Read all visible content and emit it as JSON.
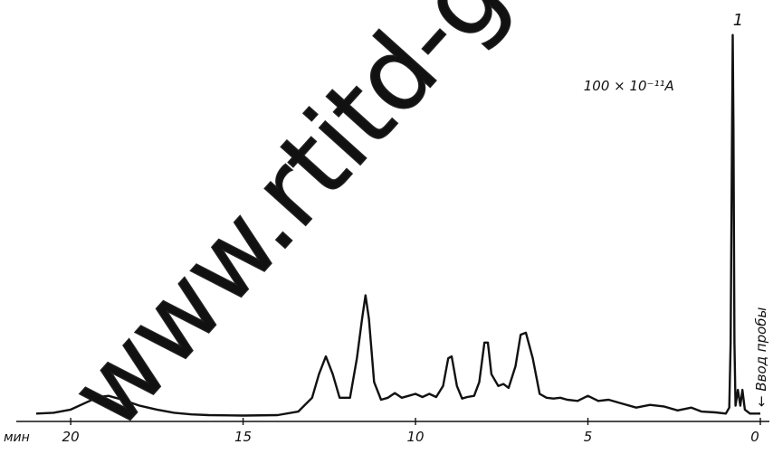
{
  "chart_data": {
    "type": "line",
    "title": "",
    "xlabel": "мин",
    "ylabel": "",
    "x_axis_reversed": true,
    "xlim": [
      0,
      21
    ],
    "ylim": [
      0,
      100
    ],
    "grid": false,
    "x_ticks": [
      {
        "value": 20,
        "label": "20"
      },
      {
        "value": 15,
        "label": "15"
      },
      {
        "value": 10,
        "label": "10"
      },
      {
        "value": 5,
        "label": "5"
      },
      {
        "value": 0,
        "label": "0"
      }
    ],
    "series": [
      {
        "points": [
          [
            21.0,
            2.0
          ],
          [
            20.5,
            2.2
          ],
          [
            20.0,
            3.0
          ],
          [
            19.5,
            5.0
          ],
          [
            19.2,
            6.2
          ],
          [
            18.9,
            6.5
          ],
          [
            18.5,
            5.5
          ],
          [
            18.0,
            4.0
          ],
          [
            17.5,
            3.0
          ],
          [
            17.0,
            2.2
          ],
          [
            16.5,
            1.8
          ],
          [
            16.0,
            1.6
          ],
          [
            15.0,
            1.5
          ],
          [
            14.0,
            1.6
          ],
          [
            13.4,
            2.5
          ],
          [
            13.0,
            6.0
          ],
          [
            12.8,
            12.0
          ],
          [
            12.6,
            16.5
          ],
          [
            12.4,
            12.0
          ],
          [
            12.2,
            6.0
          ],
          [
            11.9,
            6.0
          ],
          [
            11.7,
            16.0
          ],
          [
            11.55,
            26.0
          ],
          [
            11.45,
            32.0
          ],
          [
            11.35,
            26.0
          ],
          [
            11.2,
            10.0
          ],
          [
            11.0,
            5.5
          ],
          [
            10.8,
            6.0
          ],
          [
            10.6,
            7.2
          ],
          [
            10.4,
            6.0
          ],
          [
            10.2,
            6.5
          ],
          [
            10.0,
            7.0
          ],
          [
            9.8,
            6.2
          ],
          [
            9.6,
            7.0
          ],
          [
            9.4,
            6.2
          ],
          [
            9.2,
            9.0
          ],
          [
            9.05,
            16.0
          ],
          [
            8.95,
            16.5
          ],
          [
            8.8,
            9.0
          ],
          [
            8.65,
            5.8
          ],
          [
            8.5,
            6.2
          ],
          [
            8.3,
            6.5
          ],
          [
            8.15,
            10.0
          ],
          [
            8.0,
            20.0
          ],
          [
            7.9,
            20.0
          ],
          [
            7.8,
            12.0
          ],
          [
            7.6,
            9.0
          ],
          [
            7.45,
            9.5
          ],
          [
            7.3,
            8.5
          ],
          [
            7.1,
            14.0
          ],
          [
            6.95,
            22.0
          ],
          [
            6.8,
            22.5
          ],
          [
            6.6,
            16.0
          ],
          [
            6.4,
            7.0
          ],
          [
            6.2,
            6.0
          ],
          [
            6.0,
            5.8
          ],
          [
            5.8,
            6.0
          ],
          [
            5.6,
            5.5
          ],
          [
            5.3,
            5.2
          ],
          [
            5.0,
            6.5
          ],
          [
            4.7,
            5.2
          ],
          [
            4.4,
            5.5
          ],
          [
            4.0,
            4.5
          ],
          [
            3.6,
            3.5
          ],
          [
            3.2,
            4.2
          ],
          [
            2.8,
            3.8
          ],
          [
            2.4,
            2.8
          ],
          [
            2.0,
            3.5
          ],
          [
            1.7,
            2.5
          ],
          [
            1.3,
            2.3
          ],
          [
            1.0,
            2.0
          ],
          [
            0.9,
            3.5
          ],
          [
            0.86,
            20.0
          ],
          [
            0.82,
            75.0
          ],
          [
            0.8,
            98.0
          ],
          [
            0.78,
            75.0
          ],
          [
            0.75,
            20.0
          ],
          [
            0.72,
            4.0
          ],
          [
            0.65,
            8.0
          ],
          [
            0.58,
            4.0
          ],
          [
            0.52,
            8.0
          ],
          [
            0.45,
            3.0
          ],
          [
            0.3,
            2.0
          ],
          [
            0.0,
            2.0
          ]
        ]
      }
    ],
    "annotations": [
      {
        "text": "1",
        "x": 0.8,
        "y": 100
      },
      {
        "text": "100 × 10⁻¹¹A",
        "x": 2.5,
        "y": 83
      },
      {
        "text": "Ввод пробы",
        "x": 0.2,
        "y": 25
      },
      {
        "text": "www.rtitd-gos",
        "role": "watermark"
      }
    ]
  }
}
